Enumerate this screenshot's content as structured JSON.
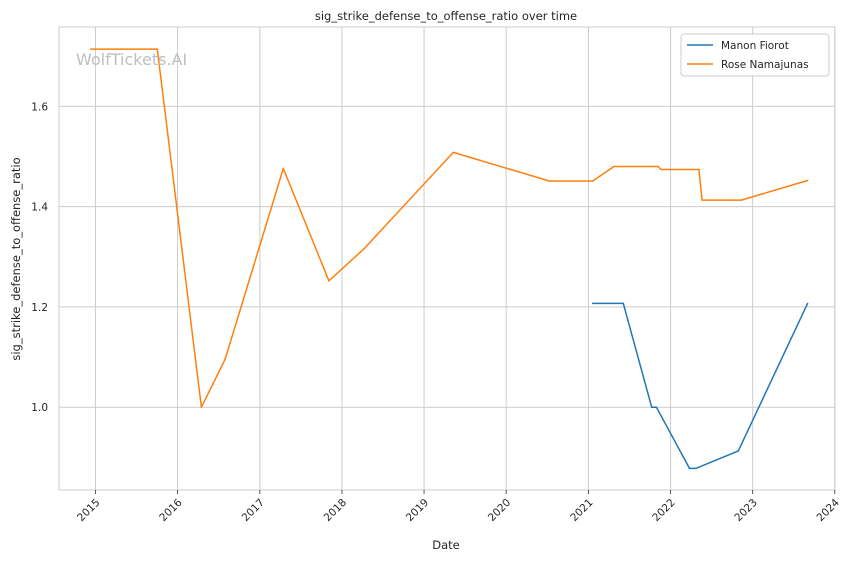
{
  "chart_data": {
    "type": "line",
    "title": "sig_strike_defense_to_offense_ratio over time",
    "xlabel": "Date",
    "ylabel": "sig_strike_defense_to_offense_ratio",
    "watermark": "WolfTickets.AI",
    "x_ticks": [
      "2015",
      "2016",
      "2017",
      "2018",
      "2019",
      "2020",
      "2021",
      "2022",
      "2023",
      "2024"
    ],
    "y_ticks": [
      "1.0",
      "1.2",
      "1.4",
      "1.6"
    ],
    "xlim": [
      "2014-07-23",
      "2024-01-02"
    ],
    "ylim": [
      0.835,
      1.758
    ],
    "grid": true,
    "legend_position": "top-right",
    "series": [
      {
        "name": "Manon Fiorot",
        "color": "#1f77b4",
        "points": [
          [
            "2021-01-20",
            1.207
          ],
          [
            "2021-06-05",
            1.207
          ],
          [
            "2021-10-09",
            1.0
          ],
          [
            "2021-10-30",
            1.0
          ],
          [
            "2022-03-26",
            0.878
          ],
          [
            "2022-04-23",
            0.878
          ],
          [
            "2022-10-29",
            0.913
          ],
          [
            "2023-09-02",
            1.207
          ]
        ]
      },
      {
        "name": "Rose Namajunas",
        "color": "#ff7f0e",
        "points": [
          [
            "2014-12-12",
            1.714
          ],
          [
            "2015-10-03",
            1.714
          ],
          [
            "2016-04-16",
            1.0
          ],
          [
            "2016-07-30",
            1.095
          ],
          [
            "2017-04-15",
            1.476
          ],
          [
            "2017-11-04",
            1.252
          ],
          [
            "2018-04-07",
            1.315
          ],
          [
            "2019-05-11",
            1.508
          ],
          [
            "2020-07-11",
            1.451
          ],
          [
            "2021-01-20",
            1.451
          ],
          [
            "2021-04-24",
            1.48
          ],
          [
            "2021-11-06",
            1.48
          ],
          [
            "2021-11-20",
            1.474
          ],
          [
            "2022-05-07",
            1.474
          ],
          [
            "2022-05-21",
            1.413
          ],
          [
            "2022-11-12",
            1.413
          ],
          [
            "2023-09-02",
            1.452
          ]
        ]
      }
    ]
  }
}
